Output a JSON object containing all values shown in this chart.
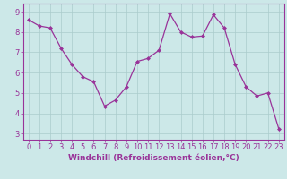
{
  "x": [
    0,
    1,
    2,
    3,
    4,
    5,
    6,
    7,
    8,
    9,
    10,
    11,
    12,
    13,
    14,
    15,
    16,
    17,
    18,
    19,
    20,
    21,
    22,
    23
  ],
  "y": [
    8.6,
    8.3,
    8.2,
    7.2,
    6.4,
    5.8,
    5.55,
    4.35,
    4.65,
    5.3,
    6.55,
    6.7,
    7.1,
    8.9,
    8.0,
    7.75,
    7.8,
    8.85,
    8.2,
    6.4,
    5.3,
    4.85,
    5.0,
    3.25
  ],
  "line_color": "#993399",
  "marker": "D",
  "marker_size": 2.0,
  "bg_color": "#cce8e8",
  "grid_color": "#aacccc",
  "xlabel": "Windchill (Refroidissement éolien,°C)",
  "ylabel_ticks": [
    3,
    4,
    5,
    6,
    7,
    8,
    9
  ],
  "xlim": [
    -0.5,
    23.5
  ],
  "ylim": [
    2.7,
    9.4
  ],
  "xlabel_color": "#993399",
  "tick_color": "#993399",
  "spine_color": "#993399",
  "xlabel_fontsize": 6.5,
  "tick_fontsize": 6.0,
  "linewidth": 0.9
}
